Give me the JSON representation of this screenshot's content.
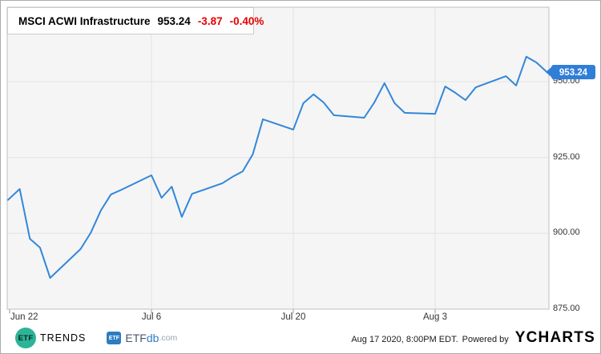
{
  "header": {
    "name": "MSCI ACWI Infrastructure",
    "price": "953.24",
    "change": "-3.87",
    "change_pct": "-0.40%"
  },
  "price_tag": {
    "label": "953.24",
    "value": 953.24
  },
  "y_axis": {
    "ticks": [
      {
        "label": "950.00",
        "value": 950
      },
      {
        "label": "925.00",
        "value": 925
      },
      {
        "label": "900.00",
        "value": 900
      },
      {
        "label": "875.00",
        "value": 875
      }
    ]
  },
  "x_axis": {
    "ticks": [
      {
        "label": "Jun 22"
      },
      {
        "label": "Jul 6"
      },
      {
        "label": "Jul 20"
      },
      {
        "label": "Aug 3"
      }
    ]
  },
  "footer": {
    "etftrends_circle_text": "ETF",
    "etftrends_word": "TRENDS",
    "etfdb_icon_text": "ETF",
    "etfdb_etf": "ETF",
    "etfdb_db": "db",
    "etfdb_com": ".com",
    "timestamp": "Aug 17 2020, 8:00PM EDT.",
    "powered_by": "Powered by",
    "ycharts": "YCHARTS"
  },
  "colors": {
    "line": "#3287d9",
    "tag_bg": "#2f7ed8",
    "negative_red": "#e60000",
    "plot_bg": "#f5f5f5",
    "plot_border": "#bfbfbf",
    "grid": "#e3e3e3",
    "tick": "#999999"
  },
  "chart_data": {
    "type": "line",
    "title": "MSCI ACWI Infrastructure",
    "legend_position": "top-left",
    "grid": true,
    "ylim": [
      875,
      974.5
    ],
    "y_tick_values": [
      950,
      925,
      900,
      875
    ],
    "x_tick_labels": [
      "Jun 22",
      "Jul 6",
      "Jul 20",
      "Aug 3"
    ],
    "series": [
      {
        "name": "MSCI ACWI Infrastructure",
        "dates": [
          "Jun 22",
          "Jun 23",
          "Jun 24",
          "Jun 25",
          "Jun 26",
          "Jun 29",
          "Jun 30",
          "Jul 1",
          "Jul 2",
          "Jul 3",
          "Jul 6",
          "Jul 7",
          "Jul 8",
          "Jul 9",
          "Jul 10",
          "Jul 13",
          "Jul 14",
          "Jul 15",
          "Jul 16",
          "Jul 17",
          "Jul 20",
          "Jul 21",
          "Jul 22",
          "Jul 23",
          "Jul 24",
          "Jul 27",
          "Jul 28",
          "Jul 29",
          "Jul 30",
          "Jul 31",
          "Aug 3",
          "Aug 4",
          "Aug 5",
          "Aug 6",
          "Aug 7",
          "Aug 10",
          "Aug 11",
          "Aug 12",
          "Aug 13",
          "Aug 14"
        ],
        "values": [
          911.5,
          914.6,
          898.2,
          895.3,
          885.3,
          894.8,
          900.1,
          907.5,
          912.8,
          914.3,
          919.1,
          911.7,
          915.4,
          905.4,
          913.0,
          916.5,
          918.6,
          920.4,
          926.0,
          937.6,
          934.2,
          942.9,
          945.8,
          943.1,
          938.9,
          938.1,
          943.1,
          949.5,
          942.9,
          939.7,
          939.4,
          948.4,
          946.3,
          943.9,
          948.1,
          951.8,
          948.7,
          958.2,
          956.3,
          953.24
        ]
      }
    ]
  }
}
